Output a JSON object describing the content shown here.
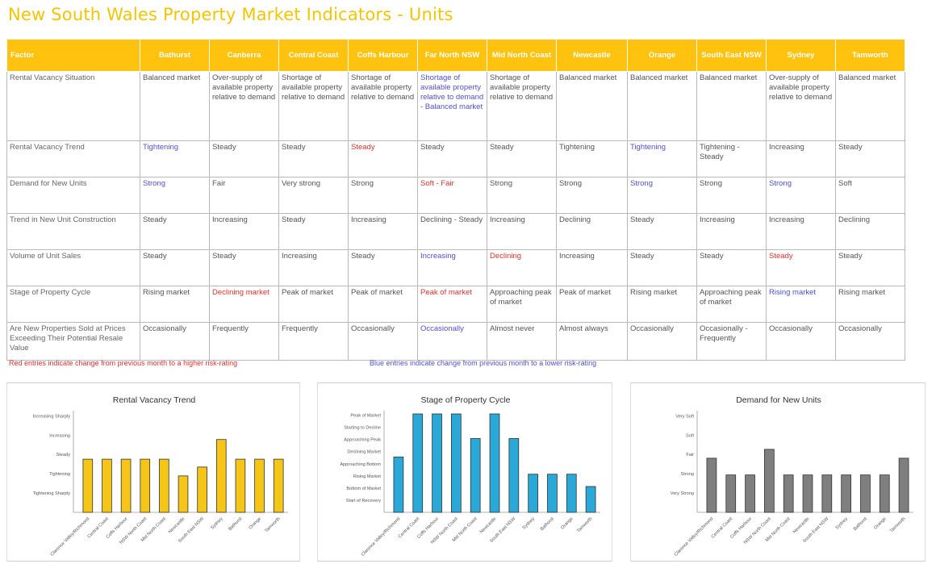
{
  "title": "New South Wales Property Market Indicators - Units",
  "table": {
    "header_factor": "Factor",
    "regions": [
      "Bathurst",
      "Canberra",
      "Central Coast",
      "Coffs Harbour",
      "Far North NSW",
      "Mid North Coast",
      "Newcastle",
      "Orange",
      "South East NSW",
      "Sydney",
      "Tamworth"
    ],
    "rows": [
      {
        "factor": "Rental Vacancy Situation",
        "cells": [
          {
            "text": "Balanced market",
            "color": ""
          },
          {
            "text": "Over-supply of available property relative to demand",
            "color": ""
          },
          {
            "text": "Shortage of available property relative to demand",
            "color": ""
          },
          {
            "text": "Shortage of available property relative to demand",
            "color": ""
          },
          {
            "text": "Shortage of available property relative to demand - Balanced market",
            "color": "blue"
          },
          {
            "text": "Shortage of available property relative to demand",
            "color": ""
          },
          {
            "text": "Balanced market",
            "color": ""
          },
          {
            "text": "Balanced market",
            "color": ""
          },
          {
            "text": "Balanced market",
            "color": ""
          },
          {
            "text": "Over-supply of available property relative to demand",
            "color": ""
          },
          {
            "text": "Balanced market",
            "color": ""
          }
        ]
      },
      {
        "factor": "Rental Vacancy Trend",
        "cells": [
          {
            "text": "Tightening",
            "color": "blue"
          },
          {
            "text": "Steady",
            "color": ""
          },
          {
            "text": "Steady",
            "color": ""
          },
          {
            "text": "Steady",
            "color": "red"
          },
          {
            "text": "Steady",
            "color": ""
          },
          {
            "text": "Steady",
            "color": ""
          },
          {
            "text": "Tightening",
            "color": ""
          },
          {
            "text": "Tightening",
            "color": "blue"
          },
          {
            "text": "Tightening - Steady",
            "color": ""
          },
          {
            "text": "Increasing",
            "color": ""
          },
          {
            "text": "Steady",
            "color": ""
          }
        ]
      },
      {
        "factor": "Demand for New Units",
        "cells": [
          {
            "text": "Strong",
            "color": "blue"
          },
          {
            "text": "Fair",
            "color": ""
          },
          {
            "text": "Very strong",
            "color": ""
          },
          {
            "text": "Strong",
            "color": ""
          },
          {
            "text": "Soft - Fair",
            "color": "red"
          },
          {
            "text": "Strong",
            "color": ""
          },
          {
            "text": "Strong",
            "color": ""
          },
          {
            "text": "Strong",
            "color": "blue"
          },
          {
            "text": "Strong",
            "color": ""
          },
          {
            "text": "Strong",
            "color": "blue"
          },
          {
            "text": "Soft",
            "color": ""
          }
        ]
      },
      {
        "factor": "Trend in New Unit Construction",
        "cells": [
          {
            "text": "Steady",
            "color": ""
          },
          {
            "text": "Increasing",
            "color": ""
          },
          {
            "text": "Steady",
            "color": ""
          },
          {
            "text": "Increasing",
            "color": ""
          },
          {
            "text": "Declining - Steady",
            "color": ""
          },
          {
            "text": "Increasing",
            "color": ""
          },
          {
            "text": "Declining",
            "color": ""
          },
          {
            "text": "Steady",
            "color": ""
          },
          {
            "text": "Increasing",
            "color": ""
          },
          {
            "text": "Increasing",
            "color": ""
          },
          {
            "text": "Declining",
            "color": ""
          }
        ]
      },
      {
        "factor": "Volume of Unit Sales",
        "cells": [
          {
            "text": "Steady",
            "color": ""
          },
          {
            "text": "Steady",
            "color": ""
          },
          {
            "text": "Increasing",
            "color": ""
          },
          {
            "text": "Steady",
            "color": ""
          },
          {
            "text": "Increasing",
            "color": "blue"
          },
          {
            "text": "Declining",
            "color": "red"
          },
          {
            "text": "Increasing",
            "color": ""
          },
          {
            "text": "Steady",
            "color": ""
          },
          {
            "text": "Steady",
            "color": ""
          },
          {
            "text": "Steady",
            "color": "red"
          },
          {
            "text": "Steady",
            "color": ""
          }
        ]
      },
      {
        "factor": "Stage of Property Cycle",
        "cells": [
          {
            "text": "Rising market",
            "color": ""
          },
          {
            "text": "Declining market",
            "color": "red"
          },
          {
            "text": "Peak of market",
            "color": ""
          },
          {
            "text": "Peak of market",
            "color": ""
          },
          {
            "text": "Peak of market",
            "color": "red"
          },
          {
            "text": "Approaching peak of market",
            "color": ""
          },
          {
            "text": "Peak of market",
            "color": ""
          },
          {
            "text": "Rising market",
            "color": ""
          },
          {
            "text": "Approaching peak of market",
            "color": ""
          },
          {
            "text": "Rising market",
            "color": "blue"
          },
          {
            "text": "Rising market",
            "color": ""
          }
        ]
      },
      {
        "factor": "Are New Properties Sold at Prices Exceeding Their Potential Resale Value",
        "cells": [
          {
            "text": "Occasionally",
            "color": ""
          },
          {
            "text": "Frequently",
            "color": ""
          },
          {
            "text": "Frequently",
            "color": ""
          },
          {
            "text": "Occasionally",
            "color": ""
          },
          {
            "text": "Occasionally",
            "color": "blue"
          },
          {
            "text": "Almost never",
            "color": ""
          },
          {
            "text": "Almost always",
            "color": ""
          },
          {
            "text": "Occasionally",
            "color": ""
          },
          {
            "text": "Occasionally - Frequently",
            "color": ""
          },
          {
            "text": "Occasionally",
            "color": ""
          },
          {
            "text": "Occasionally",
            "color": ""
          }
        ]
      }
    ]
  },
  "legend": {
    "red": "Red entries indicate change from previous month to a higher risk-rating",
    "blue": "Blue entries indicate change from previous month to a lower risk-rating"
  },
  "colors": {
    "title": "#f2c500",
    "header": "#ffc20e",
    "red_entry": "#e03030",
    "blue_entry": "#5050d0"
  },
  "chart_data": [
    {
      "type": "bar",
      "title": "Rental Vacancy Trend",
      "color": "#f5c518",
      "categories": [
        "Clarence Valley/Richmond",
        "Central Coast",
        "Coffs Harbour",
        "NSW North Coast",
        "Mid North Coast",
        "Newcastle",
        "South East NSW",
        "Sydney",
        "Bathurst",
        "Orange",
        "Tamworth"
      ],
      "y_ticks": [
        "Increasing Sharply",
        "Increasing",
        "Steady",
        "Tightening",
        "Tightening Sharply"
      ],
      "ylim": [
        0,
        5
      ],
      "values": [
        2.7,
        2.7,
        2.7,
        2.7,
        2.7,
        1.85,
        2.3,
        3.7,
        2.7,
        2.7,
        2.7
      ]
    },
    {
      "type": "bar",
      "title": "Stage of Property Cycle",
      "color": "#2aa8d8",
      "categories": [
        "Clarence Valley/Richmond",
        "Central Coast",
        "Coffs Harbour",
        "NSW North Coast",
        "Mid North Coast",
        "Newcastle",
        "South East NSW",
        "Sydney",
        "Bathurst",
        "Orange",
        "Tamworth"
      ],
      "y_ticks": [
        "Peak of Market",
        "Starting to Decline",
        "Approaching Peak",
        "Declining Market",
        "Approaching Bottom",
        "Rising Market",
        "Bottom of Market",
        "Start of Recovery"
      ],
      "ylim": [
        0,
        8
      ],
      "values": [
        4.5,
        8.0,
        8.0,
        8.0,
        6.0,
        8.0,
        6.0,
        3.1,
        3.1,
        3.1,
        2.1
      ]
    },
    {
      "type": "bar",
      "title": "Demand for New Units",
      "color": "#7f7f7f",
      "categories": [
        "Clarence Valley/Richmond",
        "Central Coast",
        "Coffs Harbour",
        "NSW North Coast",
        "Mid North Coast",
        "Newcastle",
        "South East NSW",
        "Sydney",
        "Bathurst",
        "Orange",
        "Tamworth"
      ],
      "y_ticks": [
        "Very Soft",
        "Soft",
        "Fair",
        "Strong",
        "Very Strong"
      ],
      "ylim": [
        0,
        5
      ],
      "values": [
        2.75,
        1.9,
        1.9,
        3.2,
        1.9,
        1.9,
        1.9,
        1.9,
        1.9,
        1.9,
        2.75
      ]
    }
  ]
}
